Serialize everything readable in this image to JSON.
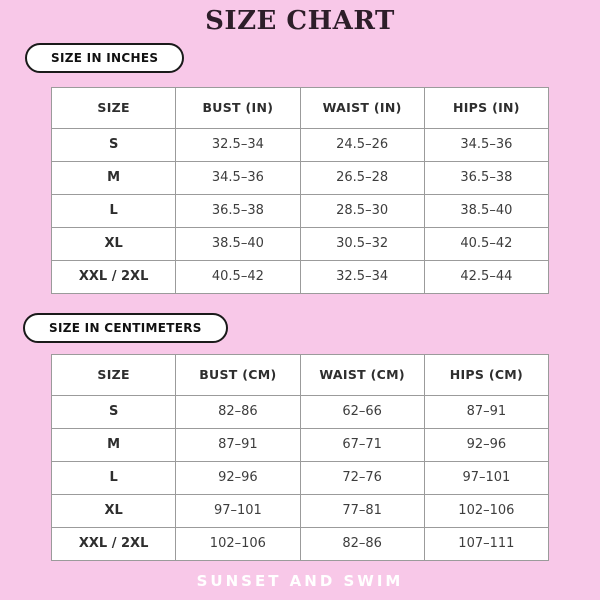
{
  "page_title": "SIZE CHART",
  "footer_brand": "SUNSET AND SWIM",
  "colors": {
    "background": "#F8C8E8",
    "title_text": "#2D1E29",
    "pill_border": "#1A1A1A",
    "pill_background": "#FFFFFF",
    "table_background": "#FFFFFF",
    "table_border": "#9B9B9B",
    "table_text": "#3D3D3D",
    "footer_text": "#FFFFFF"
  },
  "chart_data": [
    {
      "type": "table",
      "title": "SIZE IN INCHES",
      "columns": [
        "SIZE",
        "BUST (IN)",
        "WAIST (IN)",
        "HIPS (IN)"
      ],
      "rows": [
        [
          "S",
          "32.5–34",
          "24.5–26",
          "34.5–36"
        ],
        [
          "M",
          "34.5–36",
          "26.5–28",
          "36.5–38"
        ],
        [
          "L",
          "36.5–38",
          "28.5–30",
          "38.5–40"
        ],
        [
          "XL",
          "38.5–40",
          "30.5–32",
          "40.5–42"
        ],
        [
          "XXL / 2XL",
          "40.5–42",
          "32.5–34",
          "42.5–44"
        ]
      ]
    },
    {
      "type": "table",
      "title": "SIZE IN CENTIMETERS",
      "columns": [
        "SIZE",
        "BUST (CM)",
        "WAIST (CM)",
        "HIPS (CM)"
      ],
      "rows": [
        [
          "S",
          "82–86",
          "62–66",
          "87–91"
        ],
        [
          "M",
          "87–91",
          "67–71",
          "92–96"
        ],
        [
          "L",
          "92–96",
          "72–76",
          "97–101"
        ],
        [
          "XL",
          "97–101",
          "77–81",
          "102–106"
        ],
        [
          "XXL / 2XL",
          "102–106",
          "82–86",
          "107–111"
        ]
      ]
    }
  ]
}
